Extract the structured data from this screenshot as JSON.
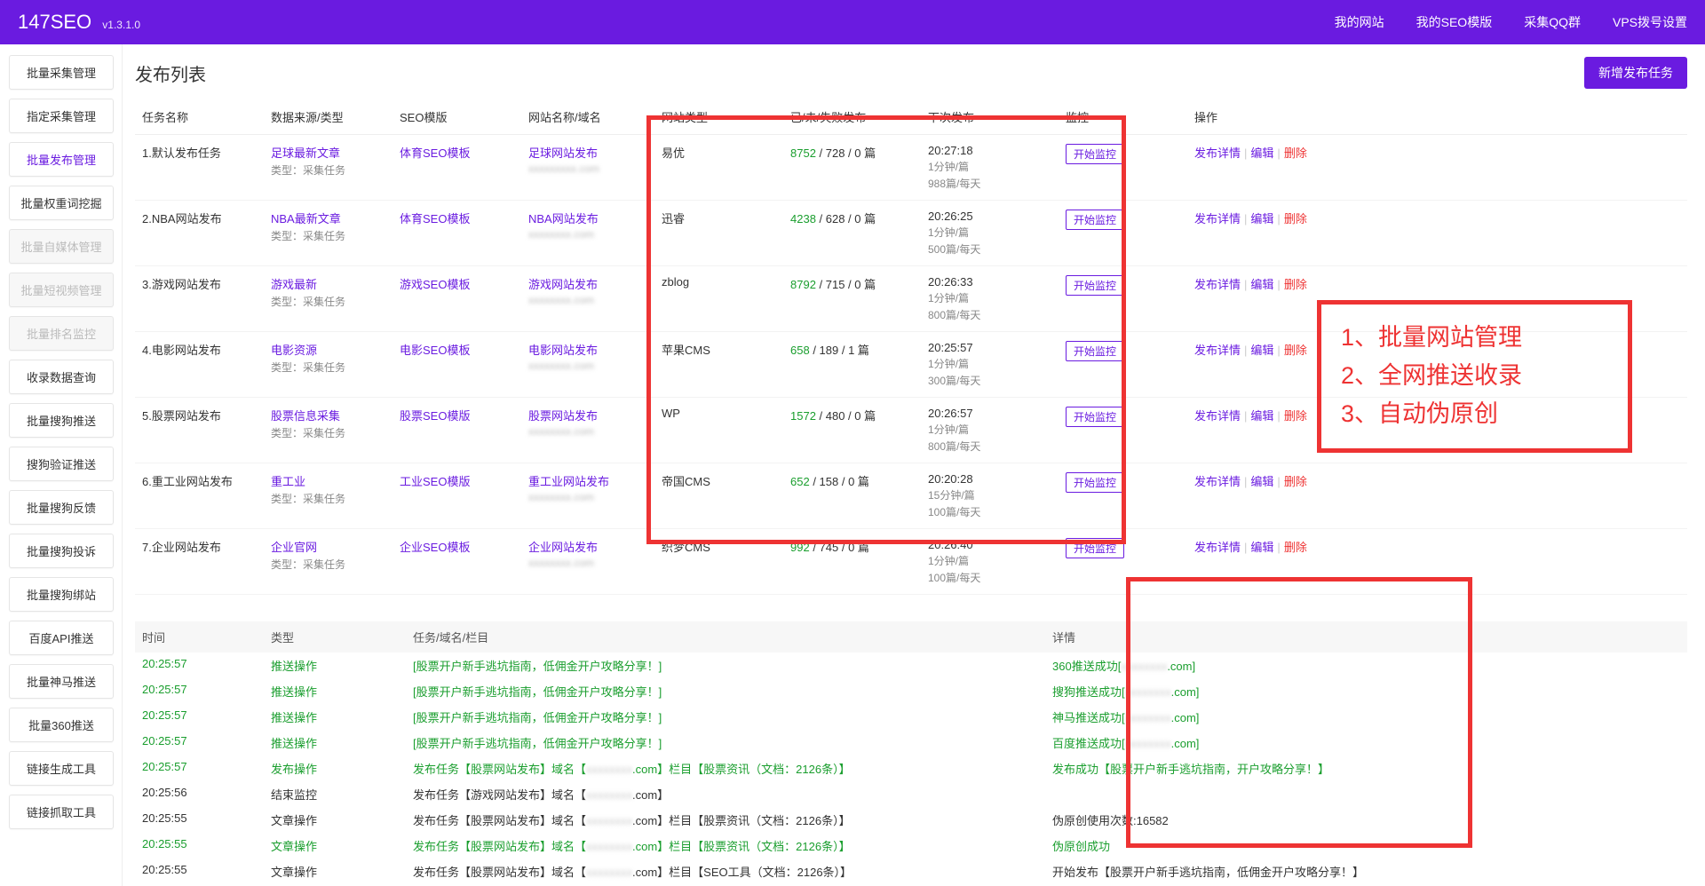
{
  "topbar": {
    "brand": "147SEO",
    "version": "v1.3.1.0",
    "nav": [
      "我的网站",
      "我的SEO模版",
      "采集QQ群",
      "VPS拨号设置"
    ]
  },
  "sidebar": [
    {
      "label": "批量采集管理",
      "state": ""
    },
    {
      "label": "指定采集管理",
      "state": ""
    },
    {
      "label": "批量发布管理",
      "state": "active"
    },
    {
      "label": "批量权重词挖掘",
      "state": ""
    },
    {
      "label": "批量自媒体管理",
      "state": "disabled"
    },
    {
      "label": "批量短视频管理",
      "state": "disabled"
    },
    {
      "label": "批量排名监控",
      "state": "disabled"
    },
    {
      "label": "收录数据查询",
      "state": ""
    },
    {
      "label": "批量搜狗推送",
      "state": ""
    },
    {
      "label": "搜狗验证推送",
      "state": ""
    },
    {
      "label": "批量搜狗反馈",
      "state": ""
    },
    {
      "label": "批量搜狗投诉",
      "state": ""
    },
    {
      "label": "批量搜狗绑站",
      "state": ""
    },
    {
      "label": "百度API推送",
      "state": ""
    },
    {
      "label": "批量神马推送",
      "state": ""
    },
    {
      "label": "批量360推送",
      "state": ""
    },
    {
      "label": "链接生成工具",
      "state": ""
    },
    {
      "label": "链接抓取工具",
      "state": ""
    }
  ],
  "main": {
    "title": "发布列表",
    "add_btn": "新增发布任务",
    "headers": [
      "任务名称",
      "数据来源/类型",
      "SEO模版",
      "网站名称/域名",
      "网站类型",
      "已/未/失败发布",
      "下次发布",
      "监控",
      "操作"
    ],
    "monitor_btn": "开始监控",
    "ops": {
      "detail": "发布详情",
      "edit": "编辑",
      "del": "删除"
    },
    "rows": [
      {
        "name": "1.默认发布任务",
        "source": "足球最新文章",
        "sourceSub": "类型：采集任务",
        "tpl": "体育SEO模板",
        "site": "足球网站发布",
        "siteUrl": "xxxxxxxxx.com",
        "sysType": "易优",
        "pubN": "8752",
        "pubRest": " / 728 / 0 篇",
        "nextTime": "20:27:18",
        "nextSub1": "1分钟/篇",
        "nextSub2": "988篇/每天"
      },
      {
        "name": "2.NBA网站发布",
        "source": "NBA最新文章",
        "sourceSub": "类型：采集任务",
        "tpl": "体育SEO模板",
        "site": "NBA网站发布",
        "siteUrl": "xxxxxxxx.com",
        "sysType": "迅睿",
        "pubN": "4238",
        "pubRest": " / 628 / 0 篇",
        "nextTime": "20:26:25",
        "nextSub1": "1分钟/篇",
        "nextSub2": "500篇/每天"
      },
      {
        "name": "3.游戏网站发布",
        "source": "游戏最新",
        "sourceSub": "类型：采集任务",
        "tpl": "游戏SEO模板",
        "site": "游戏网站发布",
        "siteUrl": "xxxxxxxx.com",
        "sysType": "zblog",
        "pubN": "8792",
        "pubRest": " / 715 / 0 篇",
        "nextTime": "20:26:33",
        "nextSub1": "1分钟/篇",
        "nextSub2": "800篇/每天"
      },
      {
        "name": "4.电影网站发布",
        "source": "电影资源",
        "sourceSub": "类型：采集任务",
        "tpl": "电影SEO模板",
        "site": "电影网站发布",
        "siteUrl": "xxxxxxxx.com",
        "sysType": "苹果CMS",
        "pubN": "658",
        "pubRest": " / 189 / 1 篇",
        "nextTime": "20:25:57",
        "nextSub1": "1分钟/篇",
        "nextSub2": "300篇/每天"
      },
      {
        "name": "5.股票网站发布",
        "source": "股票信息采集",
        "sourceSub": "类型：采集任务",
        "tpl": "股票SEO模版",
        "site": "股票网站发布",
        "siteUrl": "xxxxxxxx.com",
        "sysType": "WP",
        "pubN": "1572",
        "pubRest": " / 480 / 0 篇",
        "nextTime": "20:26:57",
        "nextSub1": "1分钟/篇",
        "nextSub2": "800篇/每天"
      },
      {
        "name": "6.重工业网站发布",
        "source": "重工业",
        "sourceSub": "类型：采集任务",
        "tpl": "工业SEO模版",
        "site": "重工业网站发布",
        "siteUrl": "xxxxxxxx.com",
        "sysType": "帝国CMS",
        "pubN": "652",
        "pubRest": " / 158 / 0 篇",
        "nextTime": "20:20:28",
        "nextSub1": "15分钟/篇",
        "nextSub2": "100篇/每天"
      },
      {
        "name": "7.企业网站发布",
        "source": "企业官网",
        "sourceSub": "类型：采集任务",
        "tpl": "企业SEO模板",
        "site": "企业网站发布",
        "siteUrl": "xxxxxxxx.com",
        "sysType": "织梦CMS",
        "pubN": "992",
        "pubRest": " / 745 / 0 篇",
        "nextTime": "20:26:40",
        "nextSub1": "1分钟/篇",
        "nextSub2": "100篇/每天"
      }
    ]
  },
  "callout": [
    "1、批量网站管理",
    "2、全网推送收录",
    "3、自动伪原创"
  ],
  "log": {
    "headers": [
      "时间",
      "类型",
      "任务/域名/栏目",
      "详情"
    ],
    "rows": [
      {
        "t": "20:25:57",
        "cls": "g",
        "type": "推送操作",
        "task": "[股票开户新手逃坑指南，低佣金开户攻略分享！]",
        "taskCls": "g",
        "detail": "360推送成功[",
        "tail": ".com]",
        "detailCls": "g"
      },
      {
        "t": "20:25:57",
        "cls": "g",
        "type": "推送操作",
        "task": "[股票开户新手逃坑指南，低佣金开户攻略分享！]",
        "taskCls": "g",
        "detail": "搜狗推送成功[",
        "tail": ".com]",
        "detailCls": "g"
      },
      {
        "t": "20:25:57",
        "cls": "g",
        "type": "推送操作",
        "task": "[股票开户新手逃坑指南，低佣金开户攻略分享！]",
        "taskCls": "g",
        "detail": "神马推送成功[",
        "tail": ".com]",
        "detailCls": "g"
      },
      {
        "t": "20:25:57",
        "cls": "g",
        "type": "推送操作",
        "task": "[股票开户新手逃坑指南，低佣金开户攻略分享！]",
        "taskCls": "g",
        "detail": "百度推送成功[",
        "tail": ".com]",
        "detailCls": "g"
      },
      {
        "t": "20:25:57",
        "cls": "g",
        "type": "发布操作",
        "task": "发布任务【股票网站发布】域名【",
        "mid": ".com】栏目【股票资讯（文档：2126条）】",
        "taskCls": "g",
        "detail": "发布成功【股票开户新手逃坑指南，开户攻略分享！】",
        "detailCls": "g"
      },
      {
        "t": "20:25:56",
        "cls": "",
        "type": "结束监控",
        "task": "发布任务【游戏网站发布】域名【",
        "mid": ".com】",
        "taskCls": "",
        "detail": "",
        "detailCls": ""
      },
      {
        "t": "20:25:55",
        "cls": "",
        "type": "文章操作",
        "task": "发布任务【股票网站发布】域名【",
        "mid": ".com】栏目【股票资讯（文档：2126条）】",
        "taskCls": "",
        "detail": "伪原创使用次数:16582",
        "detailCls": ""
      },
      {
        "t": "20:25:55",
        "cls": "g",
        "type": "文章操作",
        "task": "发布任务【股票网站发布】域名【",
        "mid": ".com】栏目【股票资讯（文档：2126条）】",
        "taskCls": "g",
        "detail": "伪原创成功",
        "detailCls": "g"
      },
      {
        "t": "20:25:55",
        "cls": "",
        "type": "文章操作",
        "task": "发布任务【股票网站发布】域名【",
        "mid": ".com】栏目【SEO工具（文档：2126条）】",
        "taskCls": "",
        "detail": "开始发布【股票开户新手逃坑指南，低佣金开户攻略分享！】",
        "detailCls": ""
      }
    ]
  }
}
